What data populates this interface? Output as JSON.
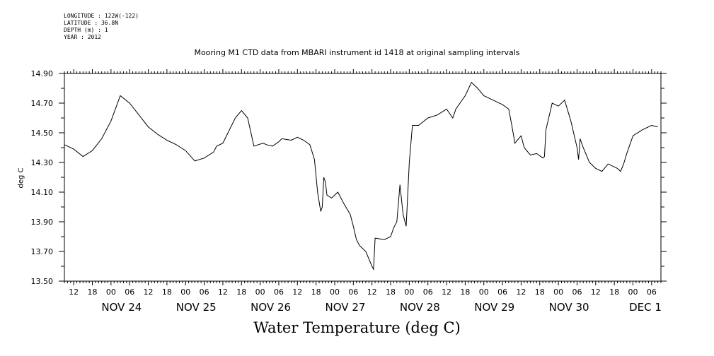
{
  "meta": {
    "longitude": "LONGITUDE : 122W(-122)",
    "latitude": "LATITUDE : 36.8N",
    "depth": "DEPTH (m) : 1",
    "year": "YEAR : 2012"
  },
  "chart_data": {
    "type": "line",
    "title": "Mooring M1 CTD data from MBARI instrument id 1418 at original sampling intervals",
    "xlabel": "Water Temperature (deg C)",
    "ylabel": "deg C",
    "ylim": [
      13.5,
      14.9
    ],
    "yticks": [
      "13.50",
      "13.70",
      "13.90",
      "14.10",
      "14.30",
      "14.50",
      "14.70",
      "14.90"
    ],
    "xlim": [
      "2012-11-23 09:00",
      "2012-12-01 09:00"
    ],
    "hour_ticks": [
      "12",
      "18",
      "00",
      "06",
      "12",
      "18",
      "00",
      "06",
      "12",
      "18",
      "00",
      "06",
      "12",
      "18",
      "00",
      "06",
      "12",
      "18",
      "00",
      "06",
      "12",
      "18",
      "00",
      "06",
      "12",
      "18",
      "00",
      "06",
      "12",
      "18",
      "00",
      "06"
    ],
    "day_labels": [
      "NOV 24",
      "NOV 25",
      "NOV 26",
      "NOV 27",
      "NOV 28",
      "NOV 29",
      "NOV 30",
      "DEC 1"
    ],
    "grid": false,
    "line_color": "#000000",
    "series": [
      {
        "x": [
          "2012-11-23 09:00",
          "2012-11-23 12:00",
          "2012-11-23 15:00",
          "2012-11-23 18:00",
          "2012-11-23 21:00",
          "2012-11-24 00:00",
          "2012-11-24 03:00",
          "2012-11-24 06:00",
          "2012-11-24 09:00",
          "2012-11-24 12:00",
          "2012-11-24 15:00",
          "2012-11-24 18:00",
          "2012-11-24 21:00",
          "2012-11-25 00:00",
          "2012-11-25 03:00",
          "2012-11-25 06:00",
          "2012-11-25 09:00",
          "2012-11-25 10:00",
          "2012-11-25 12:00",
          "2012-11-25 16:00",
          "2012-11-25 18:00",
          "2012-11-25 20:00",
          "2012-11-25 22:00",
          "2012-11-26 01:00",
          "2012-11-26 02:00",
          "2012-11-26 04:00",
          "2012-11-26 06:00",
          "2012-11-26 07:00",
          "2012-11-26 10:00",
          "2012-11-26 12:00",
          "2012-11-26 14:00",
          "2012-11-26 16:00",
          "2012-11-26 17:30",
          "2012-11-26 18:30",
          "2012-11-26 19:30",
          "2012-11-26 20:00",
          "2012-11-26 20:30",
          "2012-11-26 21:00",
          "2012-11-26 21:30",
          "2012-11-26 23:00",
          "2012-11-27 01:00",
          "2012-11-27 03:00",
          "2012-11-27 05:00",
          "2012-11-27 06:00",
          "2012-11-27 07:00",
          "2012-11-27 08:00",
          "2012-11-27 10:00",
          "2012-11-27 12:00",
          "2012-11-27 12:30",
          "2012-11-27 13:00",
          "2012-11-27 16:00",
          "2012-11-27 18:00",
          "2012-11-27 19:00",
          "2012-11-27 20:00",
          "2012-11-27 21:00",
          "2012-11-27 22:00",
          "2012-11-27 23:00",
          "2012-11-28 00:00",
          "2012-11-28 01:00",
          "2012-11-28 03:00",
          "2012-11-28 06:00",
          "2012-11-28 09:00",
          "2012-11-28 12:00",
          "2012-11-28 14:00",
          "2012-11-28 15:00",
          "2012-11-28 18:00",
          "2012-11-28 20:00",
          "2012-11-28 22:00",
          "2012-11-29 00:00",
          "2012-11-29 03:00",
          "2012-11-29 06:00",
          "2012-11-29 08:00",
          "2012-11-29 09:00",
          "2012-11-29 10:00",
          "2012-11-29 12:00",
          "2012-11-29 13:00",
          "2012-11-29 15:00",
          "2012-11-29 17:00",
          "2012-11-29 19:00",
          "2012-11-29 19:30",
          "2012-11-29 20:00",
          "2012-11-29 22:00",
          "2012-11-30 00:00",
          "2012-11-30 02:00",
          "2012-11-30 04:00",
          "2012-11-30 06:00",
          "2012-11-30 06:30",
          "2012-11-30 07:00",
          "2012-11-30 08:00",
          "2012-11-30 10:00",
          "2012-11-30 12:00",
          "2012-11-30 14:00",
          "2012-11-30 16:00",
          "2012-11-30 18:00",
          "2012-11-30 19:00",
          "2012-11-30 20:00",
          "2012-11-30 21:00",
          "2012-11-30 22:00",
          "2012-12-01 00:00",
          "2012-12-01 03:00",
          "2012-12-01 06:00",
          "2012-12-01 08:00"
        ],
        "values": [
          14.42,
          14.39,
          14.34,
          14.38,
          14.46,
          14.58,
          14.75,
          14.7,
          14.62,
          14.54,
          14.49,
          14.45,
          14.42,
          14.38,
          14.31,
          14.33,
          14.37,
          14.41,
          14.43,
          14.6,
          14.65,
          14.6,
          14.41,
          14.43,
          14.42,
          14.41,
          14.44,
          14.46,
          14.45,
          14.47,
          14.45,
          14.42,
          14.32,
          14.1,
          13.97,
          14.0,
          14.2,
          14.17,
          14.08,
          14.06,
          14.1,
          14.02,
          13.95,
          13.87,
          13.78,
          13.74,
          13.7,
          13.6,
          13.58,
          13.79,
          13.78,
          13.8,
          13.86,
          13.9,
          14.15,
          13.95,
          13.87,
          14.3,
          14.55,
          14.55,
          14.6,
          14.62,
          14.66,
          14.6,
          14.66,
          14.75,
          14.84,
          14.8,
          14.75,
          14.72,
          14.69,
          14.66,
          14.55,
          14.43,
          14.48,
          14.4,
          14.35,
          14.36,
          14.33,
          14.34,
          14.52,
          14.7,
          14.68,
          14.72,
          14.58,
          14.4,
          14.32,
          14.46,
          14.4,
          14.3,
          14.26,
          14.24,
          14.29,
          14.27,
          14.26,
          14.24,
          14.29,
          14.36,
          14.48,
          14.52,
          14.55,
          14.54
        ]
      }
    ]
  }
}
